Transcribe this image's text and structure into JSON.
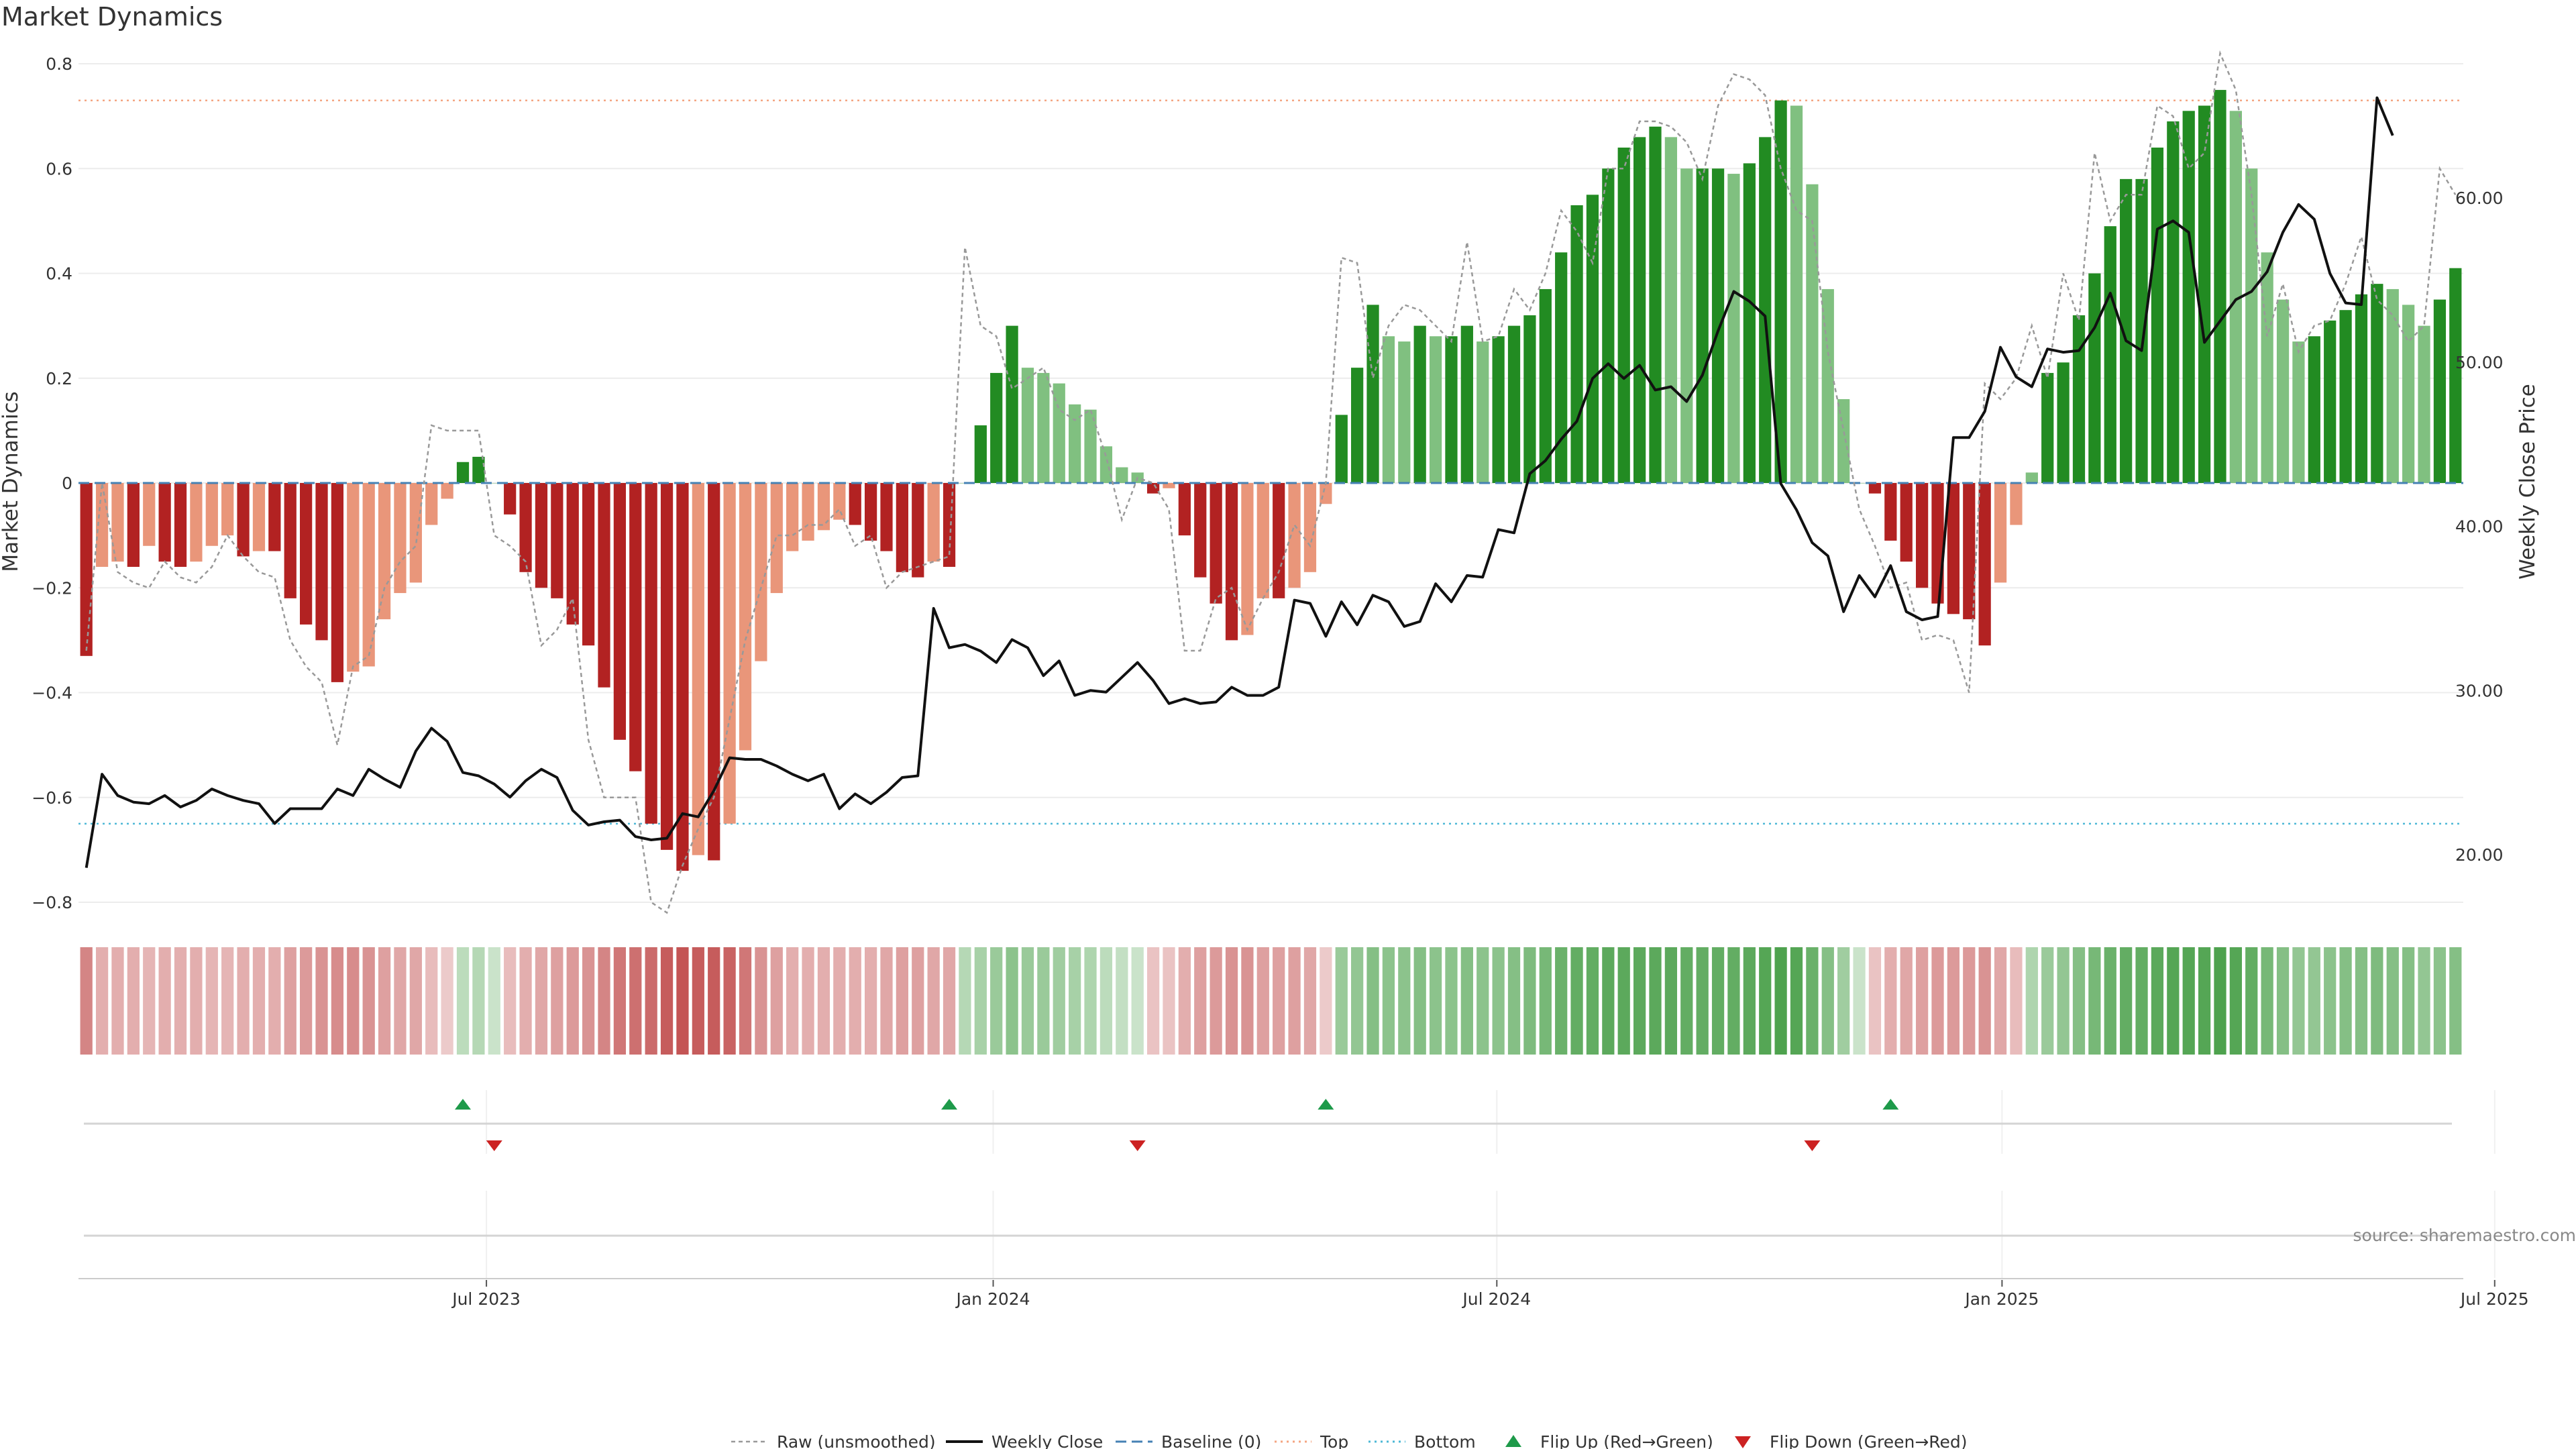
{
  "chart_data": {
    "type": "bar",
    "title": "Market Dynamics",
    "ylabel_left": "Market Dynamics",
    "ylabel_right": "Weekly Close Price",
    "ylim_left": [
      -0.8,
      0.8
    ],
    "ylim_right": [
      20,
      60
    ],
    "left_ticks": [
      "−0.8",
      "−0.6",
      "−0.4",
      "−0.2",
      "0",
      "0.2",
      "0.4",
      "0.6",
      "0.8"
    ],
    "right_ticks": [
      "20.00",
      "30.00",
      "40.00",
      "50.00",
      "60.00"
    ],
    "x_ticks": [
      "Jul 2023",
      "Jan 2024",
      "Jul 2024",
      "Jan 2025",
      "Jul 2025"
    ],
    "top_level": 0.73,
    "bottom_level": -0.65,
    "bars": [
      -0.33,
      -0.16,
      -0.15,
      -0.16,
      -0.12,
      -0.15,
      -0.16,
      -0.15,
      -0.12,
      -0.1,
      -0.14,
      -0.13,
      -0.13,
      -0.22,
      -0.27,
      -0.3,
      -0.38,
      -0.36,
      -0.35,
      -0.26,
      -0.21,
      -0.19,
      -0.08,
      -0.03,
      0.04,
      0.05,
      0.0,
      -0.06,
      -0.17,
      -0.2,
      -0.22,
      -0.27,
      -0.31,
      -0.39,
      -0.49,
      -0.55,
      -0.65,
      -0.7,
      -0.74,
      -0.71,
      -0.72,
      -0.65,
      -0.51,
      -0.34,
      -0.21,
      -0.13,
      -0.11,
      -0.09,
      -0.07,
      -0.08,
      -0.11,
      -0.13,
      -0.17,
      -0.18,
      -0.15,
      -0.16,
      0.0,
      0.11,
      0.21,
      0.3,
      0.22,
      0.21,
      0.19,
      0.15,
      0.14,
      0.07,
      0.03,
      0.02,
      -0.02,
      -0.01,
      -0.1,
      -0.18,
      -0.23,
      -0.3,
      -0.29,
      -0.22,
      -0.22,
      -0.2,
      -0.17,
      -0.04,
      0.13,
      0.22,
      0.34,
      0.28,
      0.27,
      0.3,
      0.28,
      0.28,
      0.3,
      0.27,
      0.28,
      0.3,
      0.32,
      0.37,
      0.44,
      0.53,
      0.55,
      0.6,
      0.64,
      0.66,
      0.68,
      0.66,
      0.6,
      0.6,
      0.6,
      0.59,
      0.61,
      0.66,
      0.73,
      0.72,
      0.57,
      0.37,
      0.16,
      0.0,
      -0.02,
      -0.11,
      -0.15,
      -0.2,
      -0.23,
      -0.25,
      -0.26,
      -0.31,
      -0.19,
      -0.08,
      0.02,
      0.21,
      0.23,
      0.32,
      0.4,
      0.49,
      0.58,
      0.58,
      0.64,
      0.69,
      0.71,
      0.72,
      0.75,
      0.71,
      0.6,
      0.44,
      0.35,
      0.27,
      0.28,
      0.31,
      0.33,
      0.36,
      0.38,
      0.37,
      0.34,
      0.3,
      0.35,
      0.41
    ],
    "strength": [
      0.6,
      0.3,
      0.3,
      0.3,
      0.25,
      0.3,
      0.3,
      0.3,
      0.25,
      0.25,
      0.3,
      0.3,
      0.3,
      0.4,
      0.45,
      0.5,
      0.55,
      0.55,
      0.5,
      0.4,
      0.35,
      0.35,
      0.2,
      0.1,
      0.2,
      0.25,
      0.1,
      0.2,
      0.3,
      0.35,
      0.4,
      0.45,
      0.5,
      0.6,
      0.7,
      0.75,
      0.8,
      0.9,
      0.95,
      0.9,
      0.9,
      0.85,
      0.7,
      0.5,
      0.4,
      0.3,
      0.3,
      0.3,
      0.3,
      0.3,
      0.3,
      0.35,
      0.4,
      0.4,
      0.35,
      0.35,
      0.25,
      0.35,
      0.45,
      0.55,
      0.45,
      0.45,
      0.4,
      0.35,
      0.3,
      0.2,
      0.15,
      0.1,
      0.15,
      0.15,
      0.3,
      0.4,
      0.45,
      0.5,
      0.5,
      0.4,
      0.4,
      0.4,
      0.35,
      0.1,
      0.45,
      0.5,
      0.6,
      0.55,
      0.55,
      0.6,
      0.55,
      0.55,
      0.6,
      0.55,
      0.55,
      0.6,
      0.65,
      0.7,
      0.8,
      0.85,
      0.85,
      0.9,
      0.9,
      0.9,
      0.9,
      0.9,
      0.85,
      0.85,
      0.85,
      0.85,
      0.9,
      0.95,
      1.0,
      0.95,
      0.8,
      0.6,
      0.4,
      0.1,
      0.15,
      0.3,
      0.35,
      0.4,
      0.45,
      0.45,
      0.45,
      0.5,
      0.35,
      0.2,
      0.3,
      0.45,
      0.5,
      0.6,
      0.7,
      0.8,
      0.85,
      0.85,
      0.9,
      0.95,
      0.95,
      0.95,
      1.0,
      0.95,
      0.85,
      0.7,
      0.6,
      0.5,
      0.5,
      0.55,
      0.6,
      0.6,
      0.65,
      0.6,
      0.6,
      0.5,
      0.55,
      0.6
    ],
    "raw": [
      -0.32,
      -0.0,
      -0.17,
      -0.19,
      -0.2,
      -0.15,
      -0.18,
      -0.19,
      -0.16,
      -0.1,
      -0.14,
      -0.17,
      -0.18,
      -0.3,
      -0.35,
      -0.38,
      -0.5,
      -0.35,
      -0.33,
      -0.2,
      -0.15,
      -0.12,
      0.11,
      0.1,
      0.1,
      0.1,
      -0.1,
      -0.12,
      -0.15,
      -0.31,
      -0.28,
      -0.22,
      -0.49,
      -0.6,
      -0.6,
      -0.6,
      -0.8,
      -0.82,
      -0.73,
      -0.66,
      -0.6,
      -0.45,
      -0.3,
      -0.2,
      -0.1,
      -0.1,
      -0.08,
      -0.08,
      -0.05,
      -0.12,
      -0.1,
      -0.2,
      -0.17,
      -0.16,
      -0.15,
      -0.14,
      0.45,
      0.3,
      0.28,
      0.18,
      0.2,
      0.22,
      0.14,
      0.12,
      0.14,
      0.05,
      -0.07,
      0.01,
      0.0,
      -0.05,
      -0.32,
      -0.32,
      -0.22,
      -0.2,
      -0.28,
      -0.22,
      -0.17,
      -0.08,
      -0.12,
      -0.0,
      0.43,
      0.42,
      0.2,
      0.3,
      0.34,
      0.33,
      0.3,
      0.27,
      0.46,
      0.27,
      0.28,
      0.37,
      0.33,
      0.4,
      0.52,
      0.48,
      0.42,
      0.6,
      0.6,
      0.69,
      0.69,
      0.68,
      0.65,
      0.58,
      0.72,
      0.78,
      0.77,
      0.74,
      0.6,
      0.52,
      0.5,
      0.25,
      0.1,
      -0.05,
      -0.12,
      -0.2,
      -0.19,
      -0.3,
      -0.29,
      -0.3,
      -0.4,
      0.19,
      0.16,
      0.2,
      0.3,
      0.2,
      0.4,
      0.31,
      0.63,
      0.5,
      0.55,
      0.55,
      0.72,
      0.7,
      0.6,
      0.63,
      0.82,
      0.75,
      0.55,
      0.28,
      0.38,
      0.25,
      0.3,
      0.31,
      0.38,
      0.47,
      0.35,
      0.32,
      0.27,
      0.3,
      0.6,
      0.55
    ],
    "close": [
      19.2,
      24.9,
      23.6,
      23.2,
      23.1,
      23.6,
      22.9,
      23.3,
      24.0,
      23.6,
      23.3,
      23.1,
      21.9,
      22.8,
      22.8,
      22.8,
      24.0,
      23.6,
      25.2,
      24.6,
      24.1,
      26.3,
      27.7,
      26.9,
      25.0,
      24.8,
      24.3,
      23.5,
      24.5,
      25.2,
      24.7,
      22.7,
      21.8,
      22.0,
      22.1,
      21.1,
      20.9,
      21.0,
      22.5,
      22.3,
      23.9,
      25.9,
      25.8,
      25.8,
      25.4,
      24.9,
      24.5,
      24.9,
      22.8,
      23.7,
      23.1,
      23.8,
      24.7,
      24.8,
      35.0,
      32.6,
      32.8,
      32.4,
      31.7,
      33.1,
      32.6,
      30.9,
      31.8,
      29.7,
      30.0,
      29.9,
      30.8,
      31.7,
      30.6,
      29.2,
      29.5,
      29.2,
      29.3,
      30.2,
      29.7,
      29.7,
      30.2,
      35.5,
      35.3,
      33.3,
      35.4,
      34.0,
      35.8,
      35.4,
      33.9,
      34.2,
      36.5,
      35.4,
      37.0,
      36.9,
      39.8,
      39.6,
      43.2,
      44.0,
      45.3,
      46.4,
      49.0,
      49.9,
      49.0,
      49.8,
      48.3,
      48.5,
      47.6,
      49.2,
      51.9,
      54.3,
      53.7,
      52.8,
      42.6,
      41.0,
      39.0,
      38.2,
      34.8,
      37.0,
      35.7,
      37.6,
      34.8,
      34.3,
      34.5,
      45.4,
      45.4,
      47.0,
      50.9,
      49.1,
      48.5,
      50.8,
      50.6,
      50.7,
      52.1,
      54.2,
      51.3,
      50.7,
      58.1,
      58.6,
      57.9,
      51.2,
      52.5,
      53.8,
      54.3,
      55.5,
      57.9,
      59.6,
      58.7,
      55.4,
      53.6,
      53.5,
      66.1,
      63.8
    ],
    "flip_up_weeks": [
      24,
      55,
      79,
      115
    ],
    "flip_down_weeks": [
      26,
      67,
      110
    ],
    "legend": [
      "Raw (unsmoothed)",
      "Weekly Close",
      "Baseline (0)",
      "Top",
      "Bottom",
      "Flip Up (Red→Green)",
      "Flip Down (Green→Red)"
    ],
    "legend_placement": "bottom-center",
    "source_note": "source: sharemaestro.com",
    "colors": {
      "strong_green": "#228b22",
      "light_green": "#80c080",
      "strong_red": "#b22222",
      "light_red": "#e9967a",
      "raw_line": "#999999",
      "close_line": "#111111",
      "baseline": "#4682b4",
      "top": "#f4a582",
      "bottom": "#4db8d6",
      "flip_up": "#1e9a4a",
      "flip_down": "#cc2222"
    }
  }
}
